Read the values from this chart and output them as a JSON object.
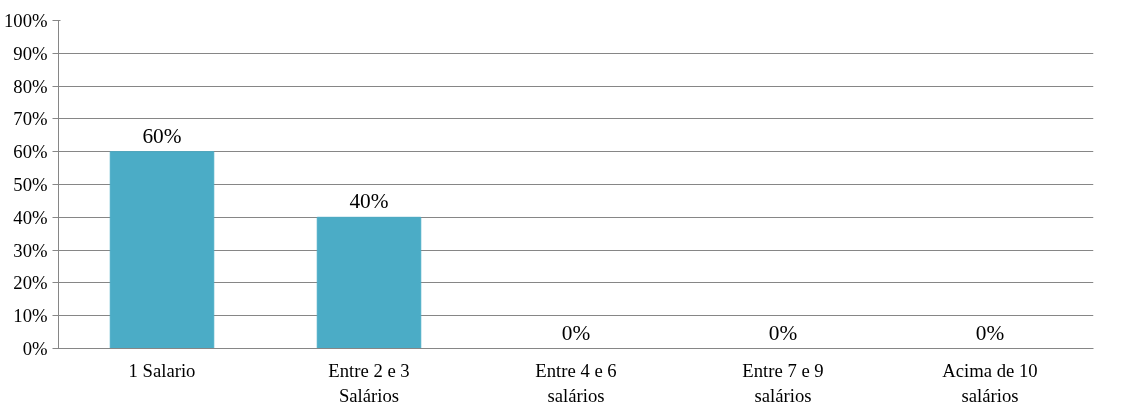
{
  "chart_data": {
    "type": "bar",
    "categories": [
      "1 Salario",
      "Entre 2 e 3 Salários",
      "Entre 4 e 6 salários",
      "Entre 7 e 9 salários",
      "Acima de 10 salários"
    ],
    "values": [
      60,
      40,
      0,
      0,
      0
    ],
    "value_labels": [
      "60%",
      "40%",
      "0%",
      "0%",
      "0%"
    ],
    "color": "#4bacc6",
    "ylim": [
      0,
      100
    ],
    "yticks": [
      {
        "value": 0,
        "label": "0%"
      },
      {
        "value": 10,
        "label": "10%"
      },
      {
        "value": 20,
        "label": "20%"
      },
      {
        "value": 30,
        "label": "30%"
      },
      {
        "value": 40,
        "label": "40%"
      },
      {
        "value": 50,
        "label": "50%"
      },
      {
        "value": 60,
        "label": "60%"
      },
      {
        "value": 70,
        "label": "70%"
      },
      {
        "value": 80,
        "label": "80%"
      },
      {
        "value": 90,
        "label": "90%"
      },
      {
        "value": 100,
        "label": "100%"
      }
    ],
    "grid": "y"
  }
}
